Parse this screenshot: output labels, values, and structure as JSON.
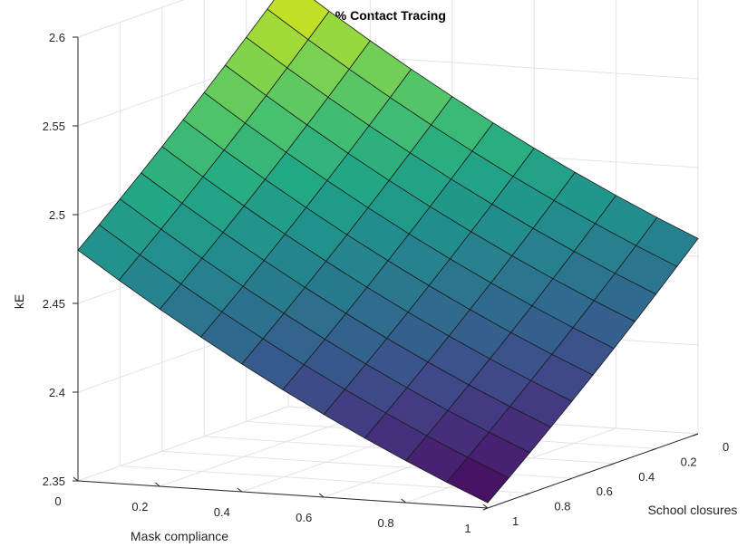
{
  "chart_data": {
    "type": "surface",
    "title": "0 % Contact Tracing",
    "xlabel": "Mask compliance",
    "ylabel": "School closures",
    "zlabel": "kE",
    "xlim": [
      0,
      1
    ],
    "ylim": [
      0,
      1
    ],
    "zlim": [
      2.35,
      2.6
    ],
    "x_ticks": [
      "0",
      "0.2",
      "0.4",
      "0.6",
      "0.8",
      "1"
    ],
    "y_ticks": [
      "0",
      "0.2",
      "0.4",
      "0.6",
      "0.8",
      "1"
    ],
    "z_ticks": [
      "2.35",
      "2.4",
      "2.45",
      "2.5",
      "2.55",
      "2.6"
    ],
    "x": [
      0,
      0.1,
      0.2,
      0.3,
      0.4,
      0.5,
      0.6,
      0.7,
      0.8,
      0.9,
      1
    ],
    "y": [
      0,
      0.1,
      0.2,
      0.3,
      0.4,
      0.5,
      0.6,
      0.7,
      0.8,
      0.9,
      1
    ],
    "z_corners": {
      "x0_y0": 2.59,
      "x1_y0": 2.46,
      "x0_y1": 2.48,
      "x1_y1": 2.353
    },
    "grid": "on",
    "colormap": "viridis"
  }
}
